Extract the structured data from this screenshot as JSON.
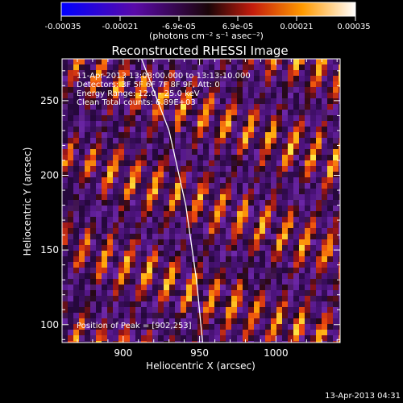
{
  "colorbar": {
    "ticks": [
      "-0.00035",
      "-0.00021",
      "-6.9e-05",
      "6.9e-05",
      "0.00021",
      "0.00035"
    ],
    "units": "(photons cm⁻² s⁻¹ asec⁻²)",
    "range": [
      -0.00035,
      0.00035
    ]
  },
  "chart_data": {
    "type": "heatmap",
    "title": "Reconstructed RHESSI Image",
    "xlabel": "Heliocentric X (arcsec)",
    "ylabel": "Heliocentric Y (arcsec)",
    "xlim": [
      860,
      1042
    ],
    "ylim": [
      88,
      278
    ],
    "x_ticks": [
      900,
      950,
      1000
    ],
    "y_ticks": [
      100,
      150,
      200,
      250
    ],
    "annotations": [
      "11-Apr-2013 13:08:00.000 to 13:13:10.000",
      "Detectors: 3F 5F 6F 7F 8F 9F, Att: 0",
      "Energy Range: 12.0 - 25.0 keV",
      "Clean    Total counts: 6.89E+03"
    ],
    "peak_label": "Position of Peak = [902,253]",
    "peak": [
      902,
      253
    ],
    "limb_line_points": [
      [
        912,
        278
      ],
      [
        930,
        230
      ],
      [
        941,
        180
      ],
      [
        948,
        130
      ],
      [
        952,
        88
      ]
    ],
    "stripe_angle_deg": 70,
    "stripe_spacing_arcsec": 15
  },
  "footer": {
    "date": "13-Apr-2013 04:31"
  }
}
